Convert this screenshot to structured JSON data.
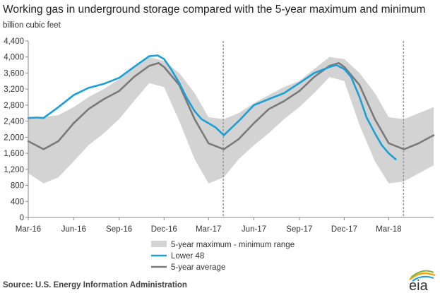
{
  "chart_data": {
    "type": "area",
    "title": "Working gas in underground storage compared with the 5-year maximum and minimum",
    "ylabel": "billion cubic feet",
    "xlabel": "",
    "ylim": [
      0,
      4400
    ],
    "yticks": [
      0,
      400,
      800,
      1200,
      1600,
      2000,
      2400,
      2800,
      3200,
      3600,
      4000,
      4400
    ],
    "x_range": [
      "2016-03-01",
      "2018-05-31"
    ],
    "x_tick_labels": [
      "Mar-16",
      "Jun-16",
      "Sep-16",
      "Dec-16",
      "Mar-17",
      "Jun-17",
      "Sep-17",
      "Dec-17",
      "Mar-18"
    ],
    "x_ticks": [
      "2016-03-01",
      "2016-06-01",
      "2016-09-01",
      "2016-12-01",
      "2017-03-01",
      "2017-06-01",
      "2017-09-01",
      "2017-12-01",
      "2018-03-01"
    ],
    "vertical_markers": [
      "2017-03-31",
      "2018-03-31"
    ],
    "grid": false,
    "legend_position": "bottom",
    "colors": {
      "range": "#d3d3d3",
      "lower48": "#1a9fd6",
      "average": "#7a7a7a"
    },
    "series": [
      {
        "name": "5-year maximum - minimum range",
        "kind": "band",
        "x": [
          "2016-03-01",
          "2016-04-01",
          "2016-05-01",
          "2016-06-01",
          "2016-07-01",
          "2016-08-01",
          "2016-09-01",
          "2016-10-01",
          "2016-11-01",
          "2016-12-01",
          "2017-01-01",
          "2017-02-01",
          "2017-03-01",
          "2017-04-01",
          "2017-05-01",
          "2017-06-01",
          "2017-07-01",
          "2017-08-01",
          "2017-09-01",
          "2017-10-01",
          "2017-11-01",
          "2017-12-01",
          "2018-01-01",
          "2018-02-01",
          "2018-03-01",
          "2018-04-01",
          "2018-05-01",
          "2018-05-31"
        ],
        "max": [
          2500,
          2500,
          2550,
          2750,
          3000,
          3200,
          3450,
          3750,
          4000,
          3900,
          3600,
          3100,
          2500,
          2450,
          2600,
          2850,
          3050,
          3250,
          3400,
          3700,
          4000,
          3950,
          3600,
          3100,
          2500,
          2450,
          2600,
          2750
        ],
        "min": [
          1100,
          850,
          1000,
          1400,
          1800,
          2100,
          2450,
          2900,
          3350,
          3250,
          2400,
          1450,
          850,
          1000,
          1450,
          1800,
          2100,
          2450,
          2750,
          3100,
          3500,
          3400,
          2300,
          1400,
          850,
          900,
          1100,
          1300
        ]
      },
      {
        "name": "Lower 48",
        "kind": "line",
        "x": [
          "2016-03-01",
          "2016-03-18",
          "2016-04-01",
          "2016-05-01",
          "2016-06-01",
          "2016-07-01",
          "2016-08-01",
          "2016-09-01",
          "2016-10-01",
          "2016-11-01",
          "2016-11-18",
          "2016-12-01",
          "2016-12-15",
          "2017-01-01",
          "2017-01-15",
          "2017-02-01",
          "2017-02-15",
          "2017-03-01",
          "2017-03-15",
          "2017-04-01",
          "2017-05-01",
          "2017-06-01",
          "2017-07-01",
          "2017-08-01",
          "2017-09-01",
          "2017-10-01",
          "2017-11-01",
          "2017-11-15",
          "2017-12-01",
          "2017-12-15",
          "2018-01-01",
          "2018-01-15",
          "2018-02-01",
          "2018-02-15",
          "2018-03-01",
          "2018-03-15"
        ],
        "values": [
          2480,
          2490,
          2480,
          2750,
          3050,
          3230,
          3330,
          3480,
          3750,
          4020,
          4040,
          3950,
          3700,
          3350,
          3000,
          2650,
          2450,
          2350,
          2250,
          2050,
          2400,
          2800,
          2950,
          3100,
          3350,
          3600,
          3750,
          3800,
          3700,
          3500,
          3000,
          2500,
          2100,
          1800,
          1600,
          1450
        ]
      },
      {
        "name": "5-year average",
        "kind": "line",
        "x": [
          "2016-03-01",
          "2016-04-01",
          "2016-05-01",
          "2016-06-01",
          "2016-07-01",
          "2016-08-01",
          "2016-09-01",
          "2016-10-01",
          "2016-11-01",
          "2016-11-20",
          "2016-12-01",
          "2017-01-01",
          "2017-02-01",
          "2017-03-01",
          "2017-04-01",
          "2017-05-01",
          "2017-06-01",
          "2017-07-01",
          "2017-08-01",
          "2017-09-01",
          "2017-10-01",
          "2017-11-01",
          "2017-11-20",
          "2017-12-01",
          "2018-01-01",
          "2018-02-01",
          "2018-03-01",
          "2018-04-01",
          "2018-05-01",
          "2018-05-31"
        ],
        "values": [
          1900,
          1700,
          1900,
          2350,
          2700,
          2950,
          3150,
          3500,
          3780,
          3850,
          3750,
          3300,
          2450,
          1850,
          1700,
          1950,
          2350,
          2700,
          2900,
          3150,
          3500,
          3780,
          3850,
          3750,
          3300,
          2450,
          1850,
          1700,
          1850,
          2050
        ]
      }
    ],
    "legend": [
      "5-year maximum - minimum range",
      "Lower 48",
      "5-year average"
    ]
  },
  "source_text": "Source:  U.S. Energy Information Administration",
  "logo_text": "eia"
}
